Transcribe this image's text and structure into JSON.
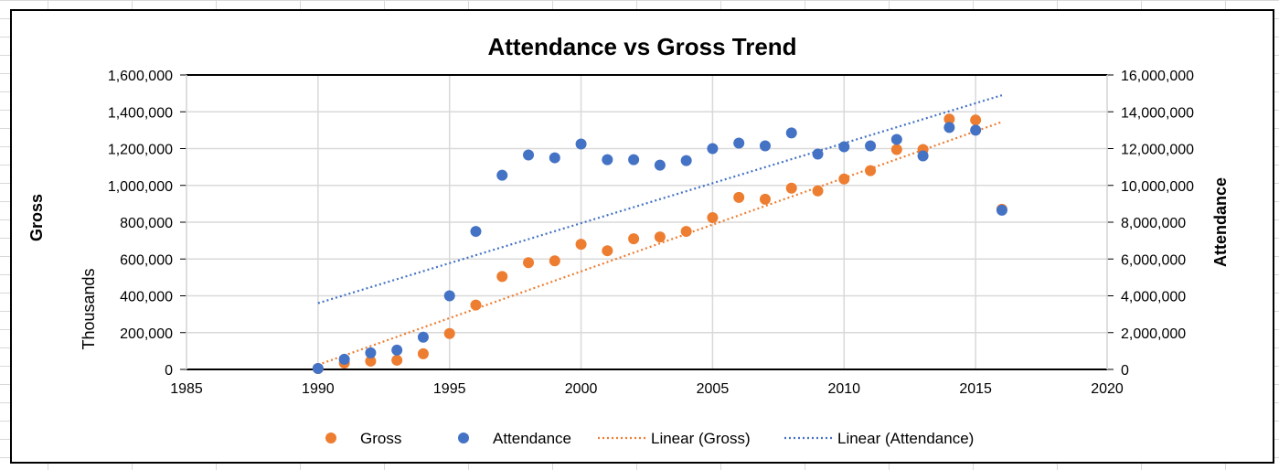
{
  "chart_data": {
    "type": "scatter",
    "title": "Attendance vs Gross Trend",
    "xlabel": "",
    "ylabel": "Gross",
    "ylabel_units": "Thousands",
    "y2label": "Attendance",
    "xlim": [
      1985,
      2020
    ],
    "ylim": [
      0,
      1600000
    ],
    "y2lim": [
      0,
      16000000
    ],
    "x_ticks": [
      1985,
      1990,
      1995,
      2000,
      2005,
      2010,
      2015,
      2020
    ],
    "y_ticks": [
      0,
      200000,
      400000,
      600000,
      800000,
      1000000,
      1200000,
      1400000,
      1600000
    ],
    "y_tick_labels": [
      "0",
      "200,000",
      "400,000",
      "600,000",
      "800,000",
      "1,000,000",
      "1,200,000",
      "1,400,000",
      "1,600,000"
    ],
    "y2_ticks": [
      0,
      2000000,
      4000000,
      6000000,
      8000000,
      10000000,
      12000000,
      14000000,
      16000000
    ],
    "y2_tick_labels": [
      "0",
      "2,000,000",
      "4,000,000",
      "6,000,000",
      "8,000,000",
      "10,000,000",
      "12,000,000",
      "14,000,000",
      "16,000,000"
    ],
    "grid": true,
    "legend_position": "bottom",
    "series": [
      {
        "name": "Gross",
        "axis": "left",
        "color": "#ED7D31",
        "x": [
          1990,
          1991,
          1992,
          1993,
          1994,
          1995,
          1996,
          1997,
          1998,
          1999,
          2000,
          2001,
          2002,
          2003,
          2004,
          2005,
          2006,
          2007,
          2008,
          2009,
          2010,
          2011,
          2012,
          2013,
          2014,
          2015,
          2016
        ],
        "y": [
          5000,
          35000,
          45000,
          50000,
          85000,
          195000,
          350000,
          505000,
          580000,
          590000,
          680000,
          645000,
          710000,
          720000,
          750000,
          825000,
          935000,
          925000,
          985000,
          970000,
          1035000,
          1080000,
          1195000,
          1195000,
          1360000,
          1355000,
          870000
        ]
      },
      {
        "name": "Attendance",
        "axis": "right",
        "color": "#4472C4",
        "x": [
          1990,
          1991,
          1992,
          1993,
          1994,
          1995,
          1996,
          1997,
          1998,
          1999,
          2000,
          2001,
          2002,
          2003,
          2004,
          2005,
          2006,
          2007,
          2008,
          2009,
          2010,
          2011,
          2012,
          2013,
          2014,
          2015,
          2016
        ],
        "y": [
          50000,
          550000,
          900000,
          1050000,
          1750000,
          4000000,
          7500000,
          10550000,
          11650000,
          11500000,
          12250000,
          11400000,
          11400000,
          11100000,
          11350000,
          12000000,
          12300000,
          12150000,
          12850000,
          11700000,
          12100000,
          12150000,
          12500000,
          11600000,
          13150000,
          13000000,
          8650000
        ]
      }
    ],
    "trendlines": [
      {
        "name": "Linear (Gross)",
        "of": "Gross",
        "axis": "left",
        "color": "#ED7D31",
        "x": [
          1990,
          2016
        ],
        "y": [
          25000,
          1345000
        ]
      },
      {
        "name": "Linear (Attendance)",
        "of": "Attendance",
        "axis": "right",
        "color": "#4472C4",
        "x": [
          1990,
          2016
        ],
        "y": [
          3600000,
          14900000
        ]
      }
    ]
  }
}
